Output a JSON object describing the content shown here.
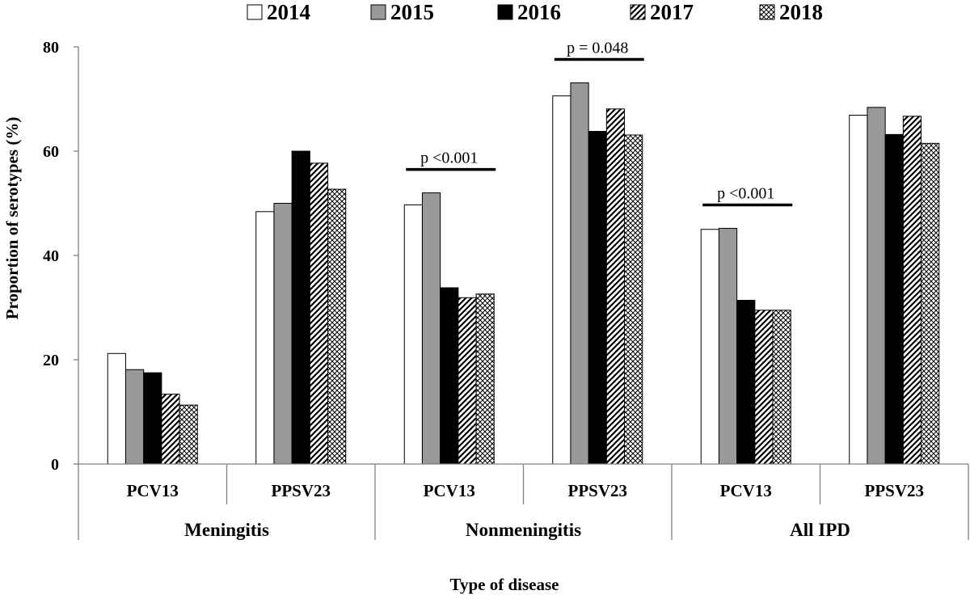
{
  "chart_data": {
    "type": "bar",
    "title": "",
    "ylabel": "Proportion of serotypes (%)",
    "xlabel": "Type of disease",
    "ylim": [
      0,
      80
    ],
    "yticks": [
      0,
      20,
      40,
      60,
      80
    ],
    "grid": false,
    "legend_position": "top",
    "groups": [
      "Meningitis",
      "Nonmeningitis",
      "All IPD"
    ],
    "categories": [
      "PCV13",
      "PPSV23",
      "PCV13",
      "PPSV23",
      "PCV13",
      "PPSV23"
    ],
    "series": [
      {
        "name": "2014",
        "fill": "white",
        "values": [
          21.2,
          48.4,
          49.7,
          70.6,
          45.0,
          66.9
        ]
      },
      {
        "name": "2015",
        "fill": "gray",
        "values": [
          18.1,
          50.0,
          52.0,
          73.1,
          45.2,
          68.4
        ]
      },
      {
        "name": "2016",
        "fill": "black",
        "values": [
          17.5,
          60.0,
          33.8,
          63.8,
          31.4,
          63.2
        ]
      },
      {
        "name": "2017",
        "fill": "diagonal-hatch",
        "values": [
          13.4,
          57.7,
          31.9,
          68.1,
          29.5,
          66.7
        ]
      },
      {
        "name": "2018",
        "fill": "crosshatch",
        "values": [
          11.3,
          52.7,
          32.6,
          63.1,
          29.5,
          61.5
        ]
      }
    ],
    "annotations": [
      {
        "text": "p <0.001",
        "category_index": 2
      },
      {
        "text": "p = 0.048",
        "category_index": 3
      },
      {
        "text": "p <0.001",
        "category_index": 4
      }
    ]
  },
  "colors": {
    "gray_bar": "#999999",
    "black_bar": "#000000",
    "axis": "#808080"
  }
}
